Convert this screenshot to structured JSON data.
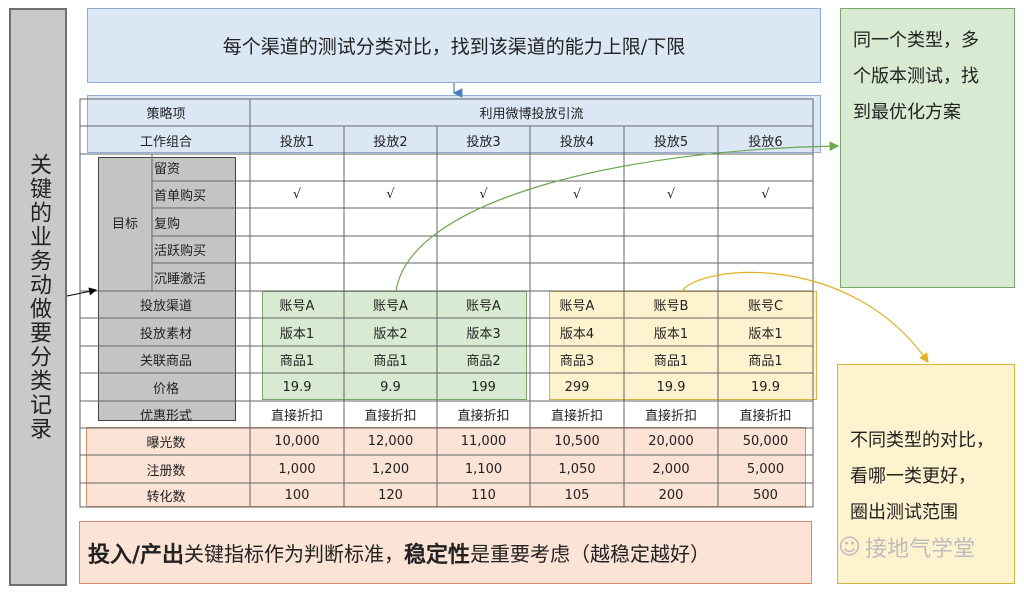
{
  "left_label": "关键的业务动做要分类记录",
  "top_note": "每个渠道的测试分类对比，找到该渠道的能力上限/下限",
  "right_top_note": [
    "同一个类型，多",
    "个版本测试，找",
    "到最优化方案"
  ],
  "right_bottom_note": [
    "不同类型的对比，",
    "看哪一类更好，",
    "圈出测试范围"
  ],
  "bottom_note": {
    "bold1": "投入/产出",
    "text1": "关键指标作为判断标准，",
    "bold2": "稳定性",
    "text2": "是重要考虑（越稳定越好）"
  },
  "watermark": "接地气学堂",
  "table": {
    "strategy_label": "策略项",
    "strategy_value": "利用微博投放引流",
    "combo_label": "工作组合",
    "columns": [
      "投放1",
      "投放2",
      "投放3",
      "投放4",
      "投放5",
      "投放6"
    ],
    "goal_label": "目标",
    "goal_items": [
      "留资",
      "首单购买",
      "复购",
      "活跃购买",
      "沉睡激活"
    ],
    "check_mark": "√",
    "rows": [
      {
        "label": "投放渠道",
        "values": [
          "账号A",
          "账号A",
          "账号A",
          "账号A",
          "账号B",
          "账号C"
        ]
      },
      {
        "label": "投放素材",
        "values": [
          "版本1",
          "版本2",
          "版本3",
          "版本4",
          "版本1",
          "版本1"
        ]
      },
      {
        "label": "关联商品",
        "values": [
          "商品1",
          "商品1",
          "商品2",
          "商品3",
          "商品1",
          "商品1"
        ]
      },
      {
        "label": "价格",
        "values": [
          "19.9",
          "9.9",
          "199",
          "299",
          "19.9",
          "19.9"
        ]
      },
      {
        "label": "优惠形式",
        "values": [
          "直接折扣",
          "直接折扣",
          "直接折扣",
          "直接折扣",
          "直接折扣",
          "直接折扣"
        ]
      },
      {
        "label": "曝光数",
        "values": [
          "10,000",
          "12,000",
          "11,000",
          "10,500",
          "20,000",
          "50,000"
        ]
      },
      {
        "label": "注册数",
        "values": [
          "1,000",
          "1,200",
          "1,100",
          "1,050",
          "2,000",
          "5,000"
        ]
      },
      {
        "label": "转化数",
        "values": [
          "100",
          "120",
          "110",
          "105",
          "200",
          "500"
        ]
      }
    ]
  },
  "colors": {
    "blue_fill": "#dbe7f5",
    "green_fill": "#d8ebd2",
    "yellow_fill": "#fff2cf",
    "orange_fill": "#fbe3d6",
    "grey_fill": "#c4c4c4"
  }
}
